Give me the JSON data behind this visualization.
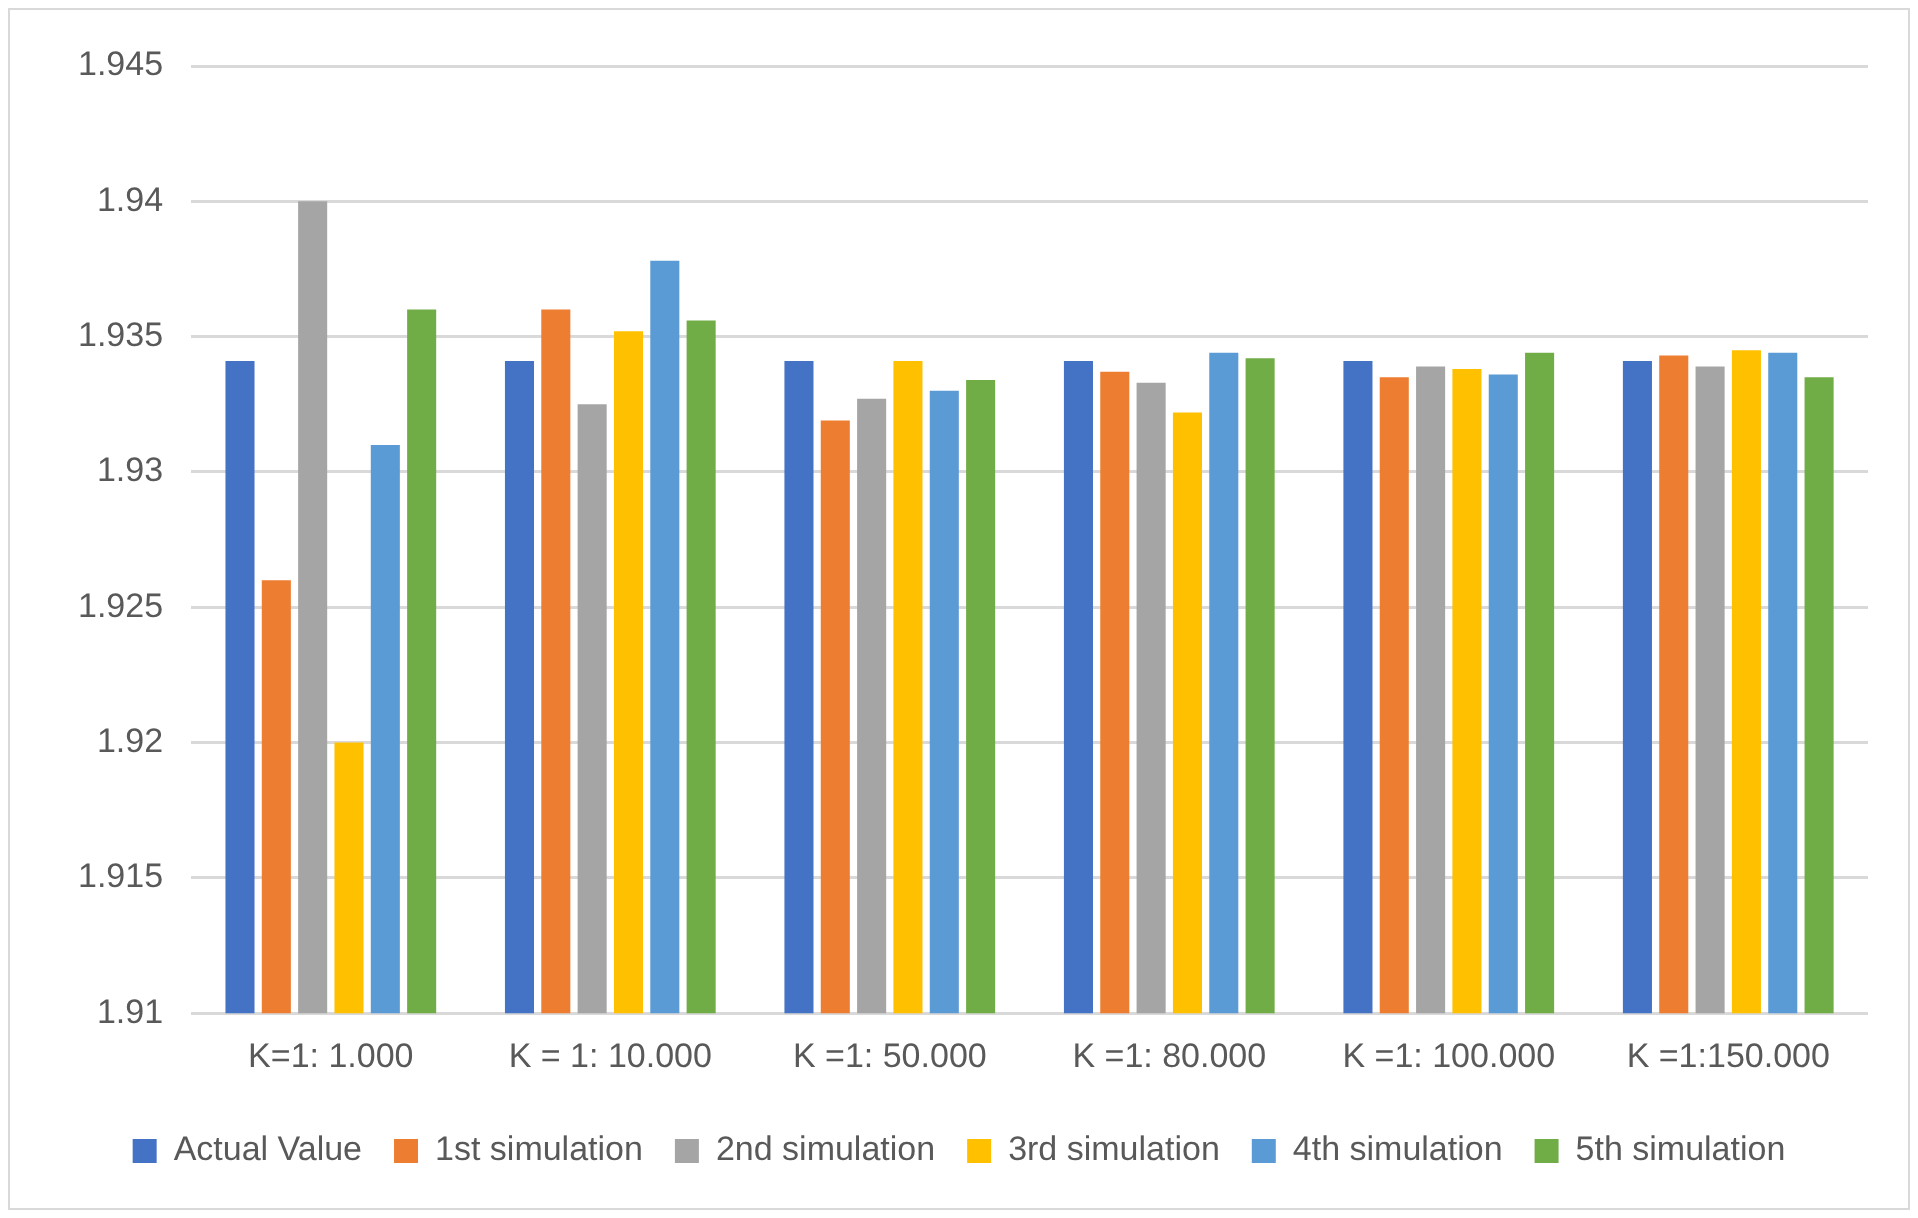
{
  "chart_data": {
    "type": "bar",
    "categories": [
      "K=1: 1.000",
      "K = 1: 10.000",
      "K =1: 50.000",
      "K =1: 80.000",
      "K =1: 100.000",
      "K =1:150.000"
    ],
    "series": [
      {
        "name": "Actual Value",
        "color": "#4472c4",
        "values": [
          1.9341,
          1.9341,
          1.9341,
          1.9341,
          1.9341,
          1.9341
        ]
      },
      {
        "name": "1st simulation",
        "color": "#ed7d31",
        "values": [
          1.926,
          1.936,
          1.9319,
          1.9337,
          1.9335,
          1.9343
        ]
      },
      {
        "name": "2nd simulation",
        "color": "#a5a5a5",
        "values": [
          1.94,
          1.9325,
          1.9327,
          1.9333,
          1.9339,
          1.9339
        ]
      },
      {
        "name": "3rd simulation",
        "color": "#ffc000",
        "values": [
          1.92,
          1.9352,
          1.9341,
          1.9322,
          1.9338,
          1.9345
        ]
      },
      {
        "name": "4th simulation",
        "color": "#5b9bd5",
        "values": [
          1.931,
          1.9378,
          1.933,
          1.9344,
          1.9336,
          1.9344
        ]
      },
      {
        "name": "5th simulation",
        "color": "#70ad47",
        "values": [
          1.936,
          1.9356,
          1.9334,
          1.9342,
          1.9344,
          1.9335
        ]
      }
    ],
    "ylim": [
      1.91,
      1.945
    ],
    "yticks": [
      1.91,
      1.915,
      1.92,
      1.925,
      1.93,
      1.935,
      1.94,
      1.945
    ],
    "grid": "y",
    "legend": "bottom"
  }
}
